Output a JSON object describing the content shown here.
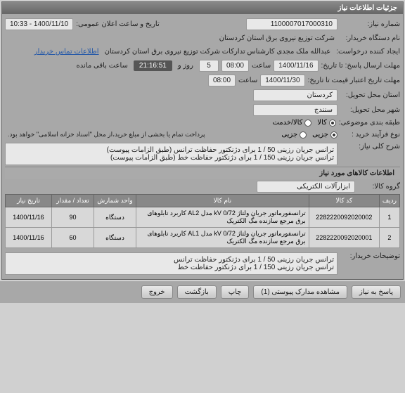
{
  "header": {
    "title": "جزئیات اطلاعات نیاز"
  },
  "fields": {
    "need_number_label": "شماره نیاز:",
    "need_number": "1100007017000310",
    "announce_label": "تاریخ و ساعت اعلان عمومی:",
    "announce_value": "1400/11/10 - 10:33",
    "buyer_label": "نام دستگاه خریدار:",
    "buyer": "شرکت توزیع نیروی برق استان کردستان",
    "requester_label": "ایجاد کننده درخواست:",
    "requester": "عبدالله ملک مجدی کارشناس تدارکات شرکت توزیع نیروی برق استان کردستان",
    "contact_link": "اطلاعات تماس خریدار",
    "deadline_label": "مهلت ارسال پاسخ: تا تاریخ:",
    "deadline_date": "1400/11/16",
    "time_label": "ساعت",
    "deadline_time": "08:00",
    "days_val": "5",
    "days_label": "روز و",
    "remain_time": "21:16:51",
    "remain_label": "ساعت باقی مانده",
    "valid_label": "مهلت تاریخ اعتبار قیمت تا تاریخ:",
    "valid_date": "1400/11/30",
    "valid_time": "08:00",
    "province_label": "استان محل تحویل:",
    "province": "کردستان",
    "city_label": "شهر محل تحویل:",
    "city": "سنندج",
    "category_label": "طبقه بندی موضوعی:",
    "cat_a": "کالا",
    "cat_b": "کالا/خدمت",
    "buy_type_label": "نوع فرآیند خرید :",
    "buy_type_a": "جزیی",
    "buy_type_b": "جزیی",
    "pay_note": "پرداخت تمام یا بخشی از مبلغ خرید،از محل \"اسناد خزانه اسلامی\" خواهد بود.",
    "desc_label": "شرح کلی نیاز:",
    "desc_text": "ترانس جریان رزینی 50 / 1 برای دژنکتور حفاظت ترانس (طبق الزامات پیوست)\nترانس جریان رزینی 150 / 1 برای دژنکتور حفاظت خط (طبق الزامات پیوست)"
  },
  "items_section": {
    "title": "اطلاعات کالاهای مورد نیاز",
    "group_label": "گروه کالا:",
    "group_value": "ابزارآلات الکتریکی",
    "columns": {
      "row": "ردیف",
      "code": "کد کالا",
      "name": "نام کالا",
      "unit": "واحد شمارش",
      "qty": "تعداد / مقدار",
      "date": "تاریخ نیاز"
    },
    "rows": [
      {
        "n": "1",
        "code": "2282220092020002",
        "name": "ترانسفورماتور جریان ولتاژ kV 0/72 مدل AL2 کاربرد تابلوهای برق مرجع سازنده مگ الکتریک",
        "unit": "دستگاه",
        "qty": "90",
        "date": "1400/11/16"
      },
      {
        "n": "2",
        "code": "2282220092020001",
        "name": "ترانسفورماتور جریان ولتاژ kV 0/72 مدل AL1 کاربرد تابلوهای برق مرجع سازنده مگ الکتریک",
        "unit": "دستگاه",
        "qty": "60",
        "date": "1400/11/16"
      }
    ],
    "notes_label": "توضیحات خریدار:",
    "notes_text": "ترانس جریان رزینی 50 / 1 برای دژنکتور حفاظت ترانس\nترانس جریان رزینی 150 / 1 برای دژنکتور حفاظت خط"
  },
  "buttons": {
    "respond": "پاسخ به نیاز",
    "attachments": "مشاهده مدارک پیوستی (1)",
    "print": "چاپ",
    "back": "بازگشت",
    "exit": "خروج"
  },
  "colors": {
    "header_bg": "#777",
    "panel_bg": "#a8a8a8",
    "box_bg": "#e8e8e8",
    "link": "#2458a8"
  }
}
